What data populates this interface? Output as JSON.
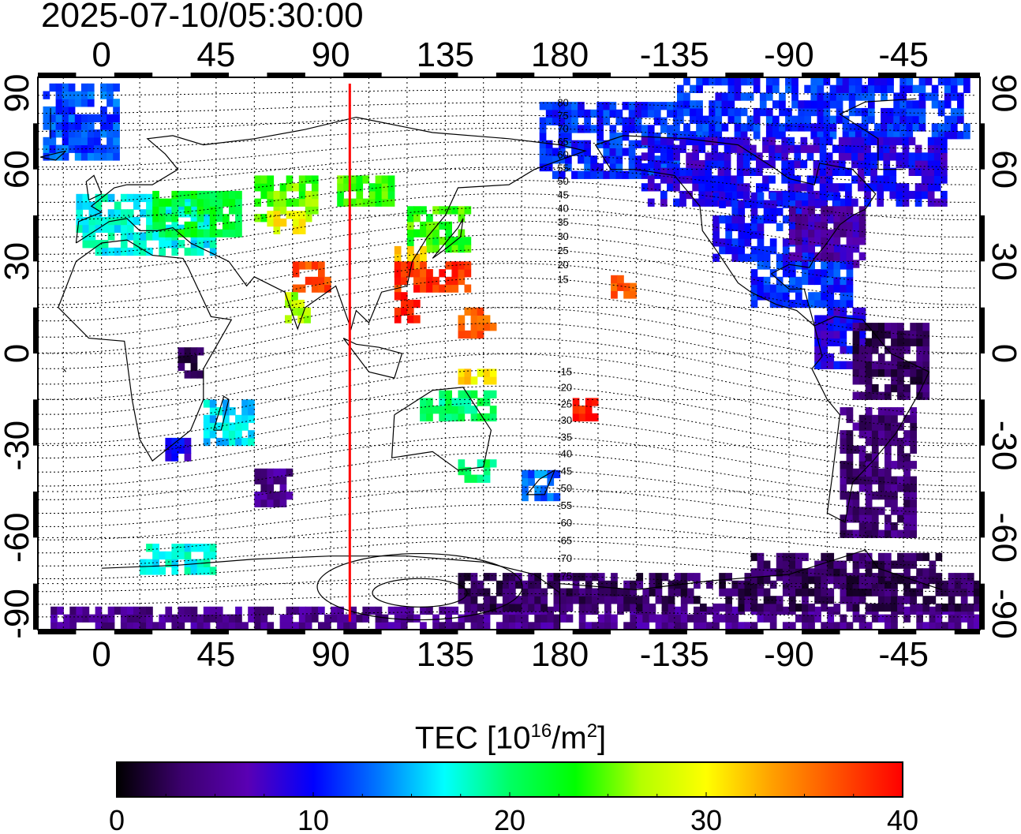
{
  "timestamp": "2025-07-10/05:30:00",
  "map": {
    "lon_range": [
      -25,
      345
    ],
    "lat_range": [
      -90,
      90
    ],
    "top_lon_ticks": [
      "0",
      "45",
      "90",
      "135",
      "180",
      "-135",
      "-90",
      "-45"
    ],
    "bottom_lon_ticks": [
      "0",
      "45",
      "90",
      "135",
      "180",
      "-135",
      "-90",
      "-45"
    ],
    "left_lat_ticks": [
      "90",
      "60",
      "30",
      "0",
      "-30",
      "-60",
      "-90"
    ],
    "right_lat_ticks": [
      "90",
      "60",
      "30",
      "0",
      "-30",
      "-60",
      "-90"
    ],
    "tick_lon_values": [
      0,
      45,
      90,
      135,
      180,
      225,
      270,
      315
    ],
    "tick_lat_values": [
      90,
      60,
      30,
      0,
      -30,
      -60,
      -90
    ],
    "subsolar_meridian_lon": 97.5,
    "meridian_color": "#ff0000",
    "magnetic_lat_labels": [
      "80",
      "75",
      "70",
      "65",
      "60",
      "55",
      "50",
      "45",
      "40",
      "35",
      "30",
      "25",
      "20",
      "15",
      "-15",
      "-20",
      "-25",
      "-30",
      "-35",
      "-40",
      "-45",
      "-50",
      "-55",
      "-60",
      "-65",
      "-70",
      "-75"
    ],
    "magnetic_lat_values": [
      80,
      75,
      70,
      65,
      60,
      55,
      50,
      45,
      40,
      35,
      30,
      25,
      20,
      15,
      -15,
      -20,
      -25,
      -30,
      -35,
      -40,
      -45,
      -50,
      -55,
      -60,
      -65,
      -70,
      -75
    ]
  },
  "colorbar": {
    "title_prefix": "TEC  [10",
    "title_exp": "16",
    "title_mid": "/m",
    "title_exp2": "2",
    "title_suffix": "]",
    "min": 0,
    "max": 40,
    "tick_labels": [
      "0",
      "10",
      "20",
      "30",
      "40"
    ],
    "tick_values": [
      0,
      10,
      20,
      30,
      40
    ],
    "colors": [
      "#000000",
      "#3c006e",
      "#5a00b4",
      "#0000ff",
      "#0078ff",
      "#00ffff",
      "#00ff64",
      "#00ff00",
      "#b4ff00",
      "#ffff00",
      "#ffa000",
      "#ff5000",
      "#ff0000"
    ]
  },
  "tec_regions": [
    {
      "lon0": -23,
      "lon1": 5,
      "lat0": 63,
      "lat1": 88,
      "tec": 12
    },
    {
      "lon0": 172,
      "lon1": 226,
      "lat0": 57,
      "lat1": 80,
      "tec": 11
    },
    {
      "lon0": 226,
      "lon1": 340,
      "lat0": 70,
      "lat1": 88,
      "tec": 11
    },
    {
      "lon0": 212,
      "lon1": 330,
      "lat0": 48,
      "lat1": 70,
      "tec": 9
    },
    {
      "lon0": 240,
      "lon1": 290,
      "lat0": 30,
      "lat1": 52,
      "tec": 10
    },
    {
      "lon0": 270,
      "lon1": 300,
      "lat0": 28,
      "lat1": 48,
      "tec": 6
    },
    {
      "lon0": 255,
      "lon1": 295,
      "lat0": 15,
      "lat1": 30,
      "tec": 11
    },
    {
      "lon0": 280,
      "lon1": 300,
      "lat0": -5,
      "lat1": 15,
      "tec": 9
    },
    {
      "lon0": 295,
      "lon1": 325,
      "lat0": -15,
      "lat1": 8,
      "tec": 3
    },
    {
      "lon0": 290,
      "lon1": 320,
      "lat0": -60,
      "lat1": -18,
      "tec": 4
    },
    {
      "lon0": -10,
      "lon1": 45,
      "lat0": 32,
      "lat1": 52,
      "tec": 17
    },
    {
      "lon0": 20,
      "lon1": 55,
      "lat0": 38,
      "lat1": 52,
      "tec": 22
    },
    {
      "lon0": 60,
      "lon1": 85,
      "lat0": 43,
      "lat1": 56,
      "tec": 25
    },
    {
      "lon0": 65,
      "lon1": 80,
      "lat0": 39,
      "lat1": 45,
      "tec": 30
    },
    {
      "lon0": 90,
      "lon1": 115,
      "lat0": 48,
      "lat1": 58,
      "tec": 24
    },
    {
      "lon0": 120,
      "lon1": 145,
      "lat0": 33,
      "lat1": 48,
      "tec": 24
    },
    {
      "lon0": 115,
      "lon1": 130,
      "lat0": 25,
      "lat1": 33,
      "tec": 32
    },
    {
      "lon0": 115,
      "lon1": 145,
      "lat0": 20,
      "lat1": 30,
      "tec": 38
    },
    {
      "lon0": 115,
      "lon1": 125,
      "lat0": 10,
      "lat1": 20,
      "tec": 39
    },
    {
      "lon0": 140,
      "lon1": 155,
      "lat0": 5,
      "lat1": 15,
      "tec": 36
    },
    {
      "lon0": 75,
      "lon1": 90,
      "lat0": 20,
      "lat1": 28,
      "tec": 37
    },
    {
      "lon0": 72,
      "lon1": 80,
      "lat0": 10,
      "lat1": 20,
      "tec": 27
    },
    {
      "lon0": 30,
      "lon1": 40,
      "lat0": -8,
      "lat1": 0,
      "tec": 3
    },
    {
      "lon0": 40,
      "lon1": 60,
      "lat0": -30,
      "lat1": -15,
      "tec": 16
    },
    {
      "lon0": 25,
      "lon1": 35,
      "lat0": -35,
      "lat1": -28,
      "tec": 9
    },
    {
      "lon0": 140,
      "lon1": 155,
      "lat0": -10,
      "lat1": -5,
      "tec": 31
    },
    {
      "lon0": 125,
      "lon1": 155,
      "lat0": -22,
      "lat1": -12,
      "tec": 20
    },
    {
      "lon0": 140,
      "lon1": 155,
      "lat0": -42,
      "lat1": -35,
      "tec": 20
    },
    {
      "lon0": 165,
      "lon1": 178,
      "lat0": -48,
      "lat1": -38,
      "tec": 13
    },
    {
      "lon0": 185,
      "lon1": 195,
      "lat0": -22,
      "lat1": -15,
      "tec": 39
    },
    {
      "lon0": 200,
      "lon1": 210,
      "lat0": 18,
      "lat1": 25,
      "tec": 36
    },
    {
      "lon0": 60,
      "lon1": 75,
      "lat0": -50,
      "lat1": -38,
      "tec": 5
    },
    {
      "lon0": 15,
      "lon1": 45,
      "lat0": -72,
      "lat1": -62,
      "tec": 17
    },
    {
      "lon0": -20,
      "lon1": 345,
      "lat0": -90,
      "lat1": -83,
      "tec": 5
    },
    {
      "lon0": 140,
      "lon1": 345,
      "lat0": -84,
      "lat1": -72,
      "tec": 3
    },
    {
      "lon0": 255,
      "lon1": 330,
      "lat0": -75,
      "lat1": -66,
      "tec": 3
    }
  ]
}
